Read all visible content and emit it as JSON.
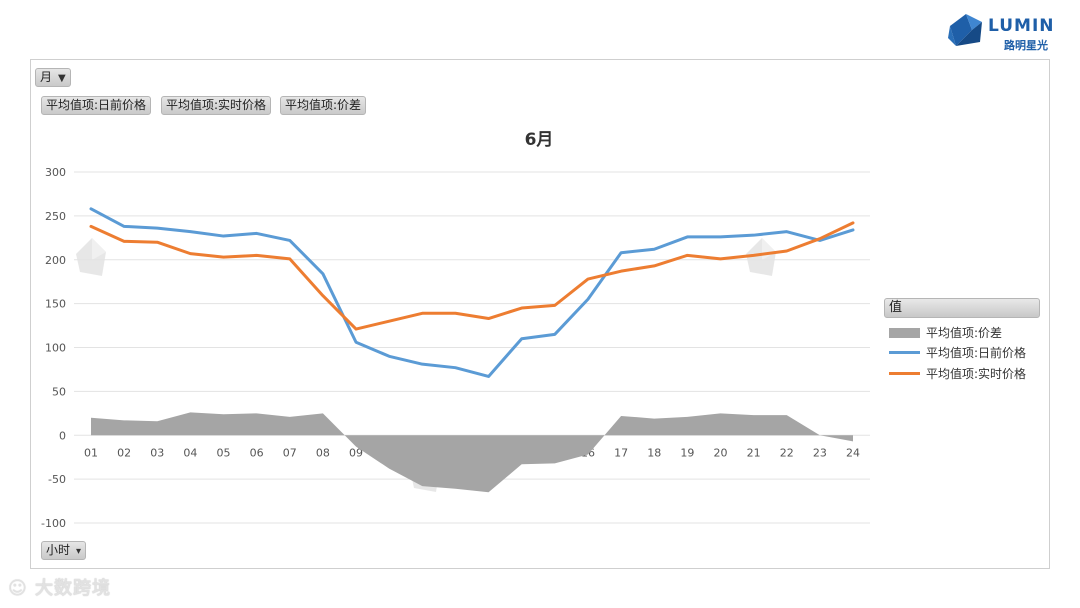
{
  "brand": {
    "name": "LUMIN",
    "sub": "路明星光",
    "color": "#1f5fa8"
  },
  "filters": {
    "month_label": "月",
    "month_icon": "filter-icon",
    "series_buttons": [
      "平均值项:日前价格",
      "平均值项:实时价格",
      "平均值项:价差"
    ],
    "hour_label": "小时",
    "hour_icon": "dropdown-icon"
  },
  "watermark_text": "大数跨境",
  "chart_data": {
    "type": "line",
    "title": "6月",
    "xlabel": "",
    "ylabel": "",
    "categories": [
      "01",
      "02",
      "03",
      "04",
      "05",
      "06",
      "07",
      "08",
      "09",
      "10",
      "11",
      "12",
      "13",
      "14",
      "15",
      "16",
      "17",
      "18",
      "19",
      "20",
      "21",
      "22",
      "23",
      "24"
    ],
    "ylim": [
      -100,
      300
    ],
    "yticks": [
      -100,
      -50,
      0,
      50,
      100,
      150,
      200,
      250,
      300
    ],
    "grid": true,
    "legend_title": "值",
    "legend_position": "right",
    "series": [
      {
        "name": "平均值项:价差",
        "kind": "area",
        "color": "#a5a5a5",
        "values": [
          20,
          17,
          16,
          26,
          24,
          25,
          21,
          25,
          -13,
          -38,
          -58,
          -61,
          -65,
          -33,
          -32,
          -22,
          22,
          19,
          21,
          25,
          23,
          23,
          0,
          -7
        ]
      },
      {
        "name": "平均值项:日前价格",
        "kind": "line",
        "color": "#5b9bd5",
        "values": [
          258,
          238,
          236,
          232,
          227,
          230,
          222,
          184,
          106,
          90,
          81,
          77,
          67,
          110,
          115,
          155,
          208,
          212,
          226,
          226,
          228,
          232,
          222,
          234
        ]
      },
      {
        "name": "平均值项:实时价格",
        "kind": "line",
        "color": "#ed7d31",
        "values": [
          238,
          221,
          220,
          207,
          203,
          205,
          201,
          159,
          121,
          130,
          139,
          139,
          133,
          145,
          148,
          178,
          187,
          193,
          205,
          201,
          205,
          210,
          224,
          242
        ]
      }
    ]
  }
}
